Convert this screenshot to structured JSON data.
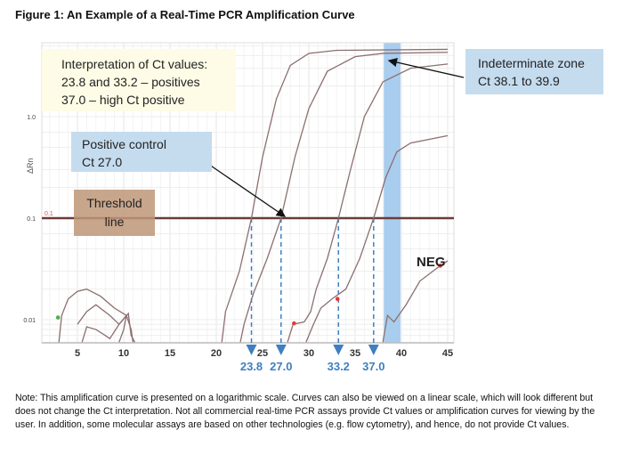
{
  "title": "Figure 1:  An Example of a Real-Time PCR Amplification Curve",
  "chart_data": {
    "type": "line",
    "ylabel": "ΔRn",
    "xlim": [
      0.3,
      45.2
    ],
    "ylim": [
      0.006,
      5.5
    ],
    "yscale": "log",
    "xticks": [
      5,
      10,
      15,
      20,
      25,
      30,
      35,
      40,
      45
    ],
    "yticks": [
      {
        "v": 1.0,
        "label": "1.0"
      },
      {
        "v": 0.1,
        "label": "0.1"
      },
      {
        "v": 0.01,
        "label": "0.01"
      }
    ],
    "threshold": {
      "value": 0.1,
      "label": "0.1"
    },
    "indeterminate_zone": [
      38.1,
      39.9
    ],
    "ct_values": [
      {
        "v": 23.8,
        "label": "23.8"
      },
      {
        "v": 27.0,
        "label": "27.0"
      },
      {
        "v": 33.2,
        "label": "33.2"
      },
      {
        "v": 37.0,
        "label": "37.0"
      }
    ],
    "series": [
      {
        "name": "Ct 23.8",
        "points": [
          [
            20.6,
            0.006
          ],
          [
            21,
            0.012
          ],
          [
            22.5,
            0.03
          ],
          [
            23.8,
            0.1
          ],
          [
            25,
            0.4
          ],
          [
            26.5,
            1.5
          ],
          [
            28,
            3.2
          ],
          [
            30,
            4.2
          ],
          [
            33,
            4.5
          ],
          [
            45,
            4.6
          ]
        ]
      },
      {
        "name": "Ct 27.0 (positive control)",
        "points": [
          [
            22.6,
            0.006
          ],
          [
            23,
            0.009
          ],
          [
            24,
            0.018
          ],
          [
            25.5,
            0.04
          ],
          [
            27,
            0.1
          ],
          [
            28.5,
            0.4
          ],
          [
            30,
            1.2
          ],
          [
            32,
            2.8
          ],
          [
            35,
            3.9
          ],
          [
            38,
            4.2
          ],
          [
            45,
            4.3
          ]
        ]
      },
      {
        "name": "Ct 33.2",
        "points": [
          [
            27.7,
            0.006
          ],
          [
            28.3,
            0.009
          ],
          [
            29.5,
            0.0095
          ],
          [
            30.2,
            0.012
          ],
          [
            30.8,
            0.02
          ],
          [
            32,
            0.04
          ],
          [
            33.2,
            0.1
          ],
          [
            34.5,
            0.3
          ],
          [
            36,
            1.0
          ],
          [
            38,
            2.2
          ],
          [
            41,
            3.0
          ],
          [
            45,
            3.3
          ]
        ]
      },
      {
        "name": "Ct 37.0",
        "points": [
          [
            29.7,
            0.006
          ],
          [
            30.5,
            0.009
          ],
          [
            31.3,
            0.013
          ],
          [
            32.5,
            0.016
          ],
          [
            34,
            0.02
          ],
          [
            35.5,
            0.04
          ],
          [
            37,
            0.1
          ],
          [
            38.3,
            0.25
          ],
          [
            39.5,
            0.45
          ],
          [
            41,
            0.55
          ],
          [
            45,
            0.65
          ]
        ]
      },
      {
        "name": "NEG",
        "points": [
          [
            38.0,
            0.006
          ],
          [
            38.5,
            0.011
          ],
          [
            39.2,
            0.0095
          ],
          [
            40.5,
            0.014
          ],
          [
            42,
            0.024
          ],
          [
            44,
            0.033
          ],
          [
            45,
            0.038
          ]
        ]
      },
      {
        "name": "noise1",
        "points": [
          [
            3,
            0.006
          ],
          [
            3.3,
            0.011
          ],
          [
            4,
            0.016
          ],
          [
            5,
            0.019
          ],
          [
            6,
            0.02
          ],
          [
            7.5,
            0.017
          ],
          [
            9,
            0.013
          ],
          [
            10.3,
            0.011
          ],
          [
            10.8,
            0.008
          ],
          [
            11,
            0.006
          ]
        ]
      },
      {
        "name": "noise2",
        "points": [
          [
            5,
            0.009
          ],
          [
            6,
            0.012
          ],
          [
            7,
            0.014
          ],
          [
            8.5,
            0.011
          ],
          [
            9.5,
            0.009
          ],
          [
            10.3,
            0.011
          ],
          [
            10,
            0.008
          ],
          [
            9.5,
            0.006
          ]
        ]
      },
      {
        "name": "noise3",
        "points": [
          [
            5.5,
            0.006
          ],
          [
            6,
            0.0085
          ],
          [
            7,
            0.008
          ],
          [
            8,
            0.007
          ],
          [
            8.5,
            0.0065
          ],
          [
            9.5,
            0.009
          ],
          [
            10.5,
            0.0115
          ],
          [
            10.8,
            0.007
          ],
          [
            11.2,
            0.006
          ]
        ]
      }
    ],
    "markers": [
      {
        "x": 2.9,
        "y": 0.0105,
        "color": "#4caf50"
      },
      {
        "x": 28.4,
        "y": 0.0092,
        "color": "#e53935"
      },
      {
        "x": 33.1,
        "y": 0.016,
        "color": "#e53935"
      },
      {
        "x": 44.2,
        "y": 0.034,
        "color": "#e53935"
      }
    ],
    "annotations": {
      "interpretation": [
        "Interpretation of Ct values:",
        "23.8 and 33.2 – positives",
        "37.0 – high Ct positive"
      ],
      "indeterminate": [
        "Indeterminate zone",
        "Ct 38.1 to 39.9"
      ],
      "positive_control": [
        "Positive control",
        "Ct 27.0"
      ],
      "threshold": [
        "Threshold",
        "line"
      ],
      "neg": "NEG"
    }
  },
  "note": "Note: This amplification curve is presented on a logarithmic scale. Curves can also be viewed on a linear scale, which will look different but does not change the Ct interpretation. Not all commercial real-time PCR assays provide Ct values or amplification curves for viewing by the user. In addition, some molecular assays are based on other technologies (e.g. flow cytometry), and hence, do not provide Ct values.",
  "colors": {
    "curve": "#9c8080",
    "threshold": "#6b3b3b",
    "zone": "#a9cdee",
    "ct_label": "#3f7fc0",
    "yellow": "#fefbe6",
    "blue_box": "#c5dcef",
    "brown_box": "#c8a48c"
  }
}
